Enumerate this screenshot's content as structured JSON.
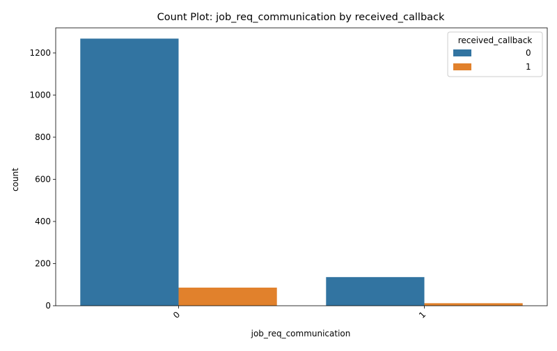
{
  "chart_data": {
    "type": "bar",
    "title": "Count Plot: job_req_communication by received_callback",
    "xlabel": "job_req_communication",
    "ylabel": "count",
    "categories": [
      "0",
      "1"
    ],
    "series": [
      {
        "name": "0",
        "color": "#3274a1",
        "values": [
          1268,
          136
        ]
      },
      {
        "name": "1",
        "color": "#e1812c",
        "values": [
          86,
          12
        ]
      }
    ],
    "ylim": [
      0,
      1319
    ],
    "yticks": [
      0,
      200,
      400,
      600,
      800,
      1000,
      1200
    ],
    "grid": false,
    "legend": {
      "title": "received_callback",
      "placement": "top-right"
    }
  }
}
